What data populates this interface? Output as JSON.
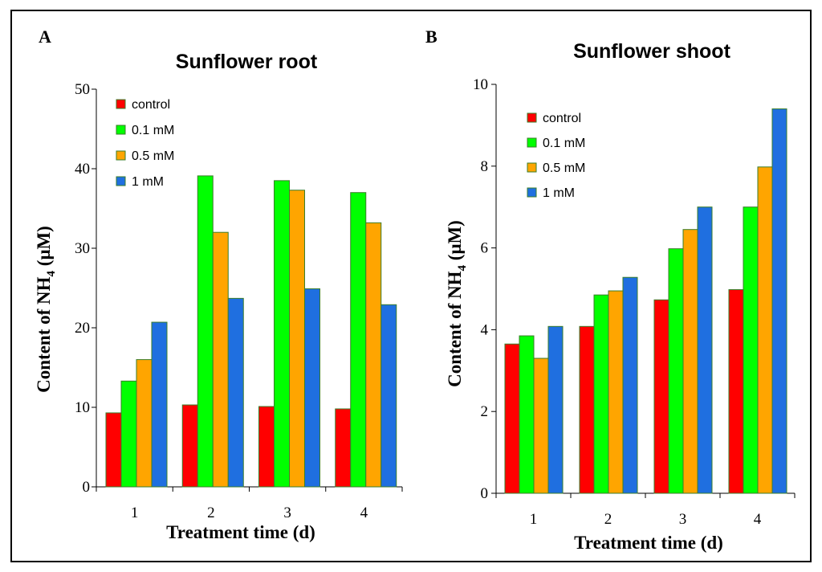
{
  "colors": {
    "control": "#ff0000",
    "0.1 mM": "#00ff00",
    "0.5 mM": "#ffa500",
    "1 mM": "#1f6fe0",
    "bar_border": "#3a7d2a",
    "frame": "#000000"
  },
  "chart_data": [
    {
      "type": "bar",
      "panel": "A",
      "title": "Sunflower root",
      "xlabel": "Treatment time (d)",
      "ylabel_prefix": "Content of NH",
      "ylabel_sub": "4",
      "ylabel_suffix": " (μM)",
      "categories": [
        "1",
        "2",
        "3",
        "4"
      ],
      "ylim": [
        0,
        50
      ],
      "yticks": [
        "0",
        "10",
        "20",
        "30",
        "40",
        "50"
      ],
      "legend_position": "top-left",
      "series": [
        {
          "name": "control",
          "values": [
            9.3,
            10.3,
            10.1,
            9.8
          ]
        },
        {
          "name": "0.1 mM",
          "values": [
            13.3,
            39.1,
            38.5,
            37.0
          ]
        },
        {
          "name": "0.5 mM",
          "values": [
            16.0,
            32.0,
            37.3,
            33.2
          ]
        },
        {
          "name": "1 mM",
          "values": [
            20.7,
            23.7,
            24.9,
            22.9
          ]
        }
      ]
    },
    {
      "type": "bar",
      "panel": "B",
      "title": "Sunflower shoot",
      "xlabel": "Treatment time (d)",
      "ylabel_prefix": "Content of NH",
      "ylabel_sub": "4",
      "ylabel_suffix": " (μM)",
      "categories": [
        "1",
        "2",
        "3",
        "4"
      ],
      "ylim": [
        0,
        10
      ],
      "yticks": [
        "0",
        "2",
        "4",
        "6",
        "8",
        "10"
      ],
      "legend_position": "top-left",
      "series": [
        {
          "name": "control",
          "values": [
            3.65,
            4.08,
            4.73,
            4.98
          ]
        },
        {
          "name": "0.1 mM",
          "values": [
            3.85,
            4.85,
            5.98,
            7.0
          ]
        },
        {
          "name": "0.5 mM",
          "values": [
            3.3,
            4.95,
            6.45,
            7.98
          ]
        },
        {
          "name": "1 mM",
          "values": [
            4.08,
            5.28,
            7.0,
            9.4
          ]
        }
      ]
    }
  ]
}
